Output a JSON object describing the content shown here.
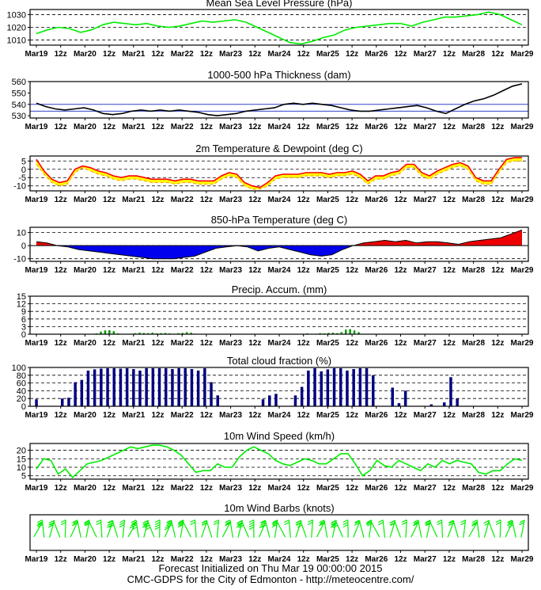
{
  "x_labels": [
    "Mar19",
    "12z",
    "Mar20",
    "12z",
    "Mar21",
    "12z",
    "Mar22",
    "12z",
    "Mar23",
    "12z",
    "Mar24",
    "12z",
    "Mar25",
    "12z",
    "Mar26",
    "12z",
    "Mar27",
    "12z",
    "Mar28",
    "12z",
    "Mar29"
  ],
  "footer": {
    "line1": "Forecast Initialized on Thu Mar 19 00:00:00 2015",
    "line2": "CMC-GDPS for the City of Edmonton - http://meteocentre.com/"
  },
  "colors": {
    "pressure": "#00ee00",
    "wind": "#00ee00",
    "thickness": "#000000",
    "ref_line": "#3344cc",
    "temp_fill": "#ffff00",
    "temp_line": "#ff0000",
    "dew_line": "#ffaa00",
    "t850_pos": "#ee0000",
    "t850_neg": "#0000ee",
    "precip": "#009900",
    "cloud": "#000080",
    "barb": "#00ee00"
  },
  "chart_data": [
    {
      "id": "pressure",
      "type": "line",
      "title": "Mean Sea Level Pressure (hPa)",
      "ylim": [
        1006,
        1034
      ],
      "yticks": [
        1010,
        1020,
        1030
      ],
      "grid": "dashed",
      "series": [
        {
          "values": [
            1015,
            1018,
            1020,
            1019,
            1016,
            1018,
            1022,
            1024,
            1023,
            1022,
            1023,
            1021,
            1020,
            1021,
            1023,
            1025,
            1024,
            1025,
            1026,
            1024,
            1020,
            1016,
            1012,
            1008,
            1007,
            1009,
            1012,
            1014,
            1018,
            1020,
            1021,
            1022,
            1023,
            1023,
            1021,
            1024,
            1026,
            1028,
            1028,
            1029,
            1030,
            1032,
            1030,
            1026,
            1022
          ]
        }
      ]
    },
    {
      "id": "thickness",
      "type": "line",
      "title": "1000-500 hPa Thickness (dam)",
      "ylim": [
        528,
        560
      ],
      "yticks": [
        530,
        540,
        550,
        560
      ],
      "ref_lines": [
        534,
        540
      ],
      "grid": "none",
      "series": [
        {
          "values": [
            541,
            538,
            536,
            535,
            536,
            537,
            535,
            532,
            531,
            532,
            534,
            535,
            534,
            535,
            534,
            535,
            534,
            533,
            531,
            530,
            531,
            532,
            534,
            535,
            536,
            537,
            540,
            541,
            540,
            541,
            540,
            539,
            537,
            535,
            534,
            534,
            535,
            536,
            537,
            538,
            539,
            537,
            534,
            532,
            536,
            540,
            543,
            545,
            548,
            552,
            556,
            558
          ]
        }
      ]
    },
    {
      "id": "temperature",
      "type": "area",
      "title": "2m Temperature & Dewpoint (deg C)",
      "ylim": [
        -13,
        8
      ],
      "yticks": [
        -10,
        -5,
        0,
        5
      ],
      "grid": "dashed",
      "series": [
        {
          "values": [
            6,
            -1,
            -6,
            -8,
            -7,
            0,
            2,
            1,
            -1,
            -2,
            -4,
            -5,
            -4,
            -4,
            -5,
            -6,
            -6,
            -6,
            -7,
            -6,
            -6,
            -7,
            -7,
            -7,
            -4,
            -2,
            -3,
            -8,
            -10,
            -11,
            -8,
            -4,
            -3,
            -3,
            -3,
            -2,
            -2,
            -2,
            -3,
            -2,
            -2,
            -1,
            -3,
            -7,
            -4,
            -4,
            -2,
            -1,
            3,
            3,
            -2,
            -4,
            -1,
            1,
            3,
            4,
            2,
            -5,
            -7,
            -7,
            0,
            6,
            7,
            7
          ]
        },
        {
          "values": [
            3,
            -3,
            -8,
            -10,
            -9,
            -2,
            1,
            -1,
            -3,
            -4,
            -6,
            -7,
            -6,
            -6,
            -7,
            -8,
            -8,
            -8,
            -9,
            -8,
            -8,
            -9,
            -9,
            -9,
            -6,
            -4,
            -5,
            -10,
            -12,
            -12,
            -10,
            -6,
            -5,
            -5,
            -5,
            -4,
            -4,
            -4,
            -5,
            -4,
            -4,
            -3,
            -5,
            -9,
            -6,
            -6,
            -4,
            -3,
            1,
            1,
            -4,
            -6,
            -3,
            -1,
            1,
            2,
            0,
            -7,
            -9,
            -9,
            -2,
            4,
            5,
            5
          ]
        }
      ]
    },
    {
      "id": "t850",
      "type": "area",
      "title": "850-hPa Temperature (deg C)",
      "ylim": [
        -12,
        14
      ],
      "yticks": [
        -10,
        0,
        10
      ],
      "grid": "dashed",
      "series": [
        {
          "values": [
            3,
            2,
            0,
            -1,
            -3,
            -4,
            -5,
            -6,
            -7,
            -8,
            -9,
            -10,
            -10,
            -10,
            -9,
            -8,
            -5,
            -2,
            -1,
            0,
            -1,
            -4,
            -2,
            -1,
            -3,
            -5,
            -7,
            -8,
            -7,
            -3,
            0,
            2,
            3,
            4,
            3,
            4,
            2,
            3,
            3,
            2,
            1,
            3,
            4,
            5,
            6,
            9,
            12
          ]
        }
      ]
    },
    {
      "id": "precip",
      "type": "bar",
      "title": "Precip. Accum. (mm)",
      "ylim": [
        0,
        15
      ],
      "yticks": [
        0,
        3,
        6,
        9,
        12,
        15
      ],
      "grid": "dashed",
      "values": [
        0,
        0,
        0,
        0,
        0,
        0,
        0,
        0,
        0,
        0,
        0,
        0,
        0,
        0,
        0.3,
        1.0,
        1.5,
        1.6,
        1.2,
        0.3,
        0.1,
        0,
        0.2,
        0.4,
        0.6,
        0.5,
        0.4,
        0.6,
        0.3,
        0.4,
        0.5,
        0.3,
        0.2,
        0.4,
        0.5,
        0.8,
        0.6,
        0.2,
        0.1,
        0,
        0,
        0,
        0,
        0,
        0,
        0,
        0,
        0,
        0,
        0,
        0,
        0,
        0,
        0,
        0,
        0,
        0,
        0,
        0,
        0,
        0,
        0,
        0.2,
        0.3,
        0.1,
        0.2,
        0.4,
        0.3,
        0.5,
        0.6,
        0.4,
        0.8,
        1.8,
        2.0,
        1.5,
        0.8,
        0.1,
        0,
        0,
        0,
        0,
        0,
        0,
        0,
        0,
        0,
        0,
        0,
        0,
        0,
        0,
        0,
        0,
        0,
        0,
        0,
        0,
        0,
        0,
        0,
        0,
        0,
        0,
        0,
        0,
        0,
        0,
        0,
        0,
        0,
        0,
        0,
        0,
        0
      ]
    },
    {
      "id": "cloud",
      "type": "bar",
      "title": "Total cloud fraction (%)",
      "ylim": [
        0,
        100
      ],
      "yticks": [
        0,
        20,
        40,
        60,
        80,
        100
      ],
      "grid": "dashed",
      "values": [
        18,
        0,
        0,
        0,
        20,
        22,
        62,
        68,
        92,
        95,
        97,
        98,
        98,
        97,
        98,
        96,
        92,
        98,
        98,
        98,
        98,
        96,
        98,
        98,
        96,
        92,
        98,
        62,
        28,
        0,
        0,
        0,
        0,
        0,
        0,
        18,
        28,
        32,
        0,
        0,
        28,
        50,
        92,
        98,
        90,
        95,
        98,
        98,
        92,
        96,
        98,
        98,
        80,
        0,
        0,
        48,
        8,
        40,
        0,
        0,
        0,
        5,
        0,
        10,
        75,
        20,
        0,
        0,
        0,
        0,
        0,
        0,
        0,
        0,
        0,
        0
      ]
    },
    {
      "id": "wind",
      "type": "line",
      "title": "10m Wind Speed (km/h)",
      "ylim": [
        3,
        24
      ],
      "yticks": [
        5,
        10,
        15,
        20
      ],
      "grid": "dashed",
      "series": [
        {
          "values": [
            9,
            15,
            14,
            6,
            9,
            4,
            8,
            12,
            13,
            14,
            16,
            18,
            20,
            22,
            21,
            22,
            23,
            23,
            22,
            20,
            17,
            12,
            7,
            8,
            8,
            12,
            10,
            10,
            16,
            20,
            22,
            20,
            18,
            14,
            12,
            11,
            13,
            15,
            14,
            12,
            12,
            15,
            18,
            18,
            12,
            5,
            8,
            14,
            11,
            10,
            14,
            12,
            10,
            8,
            12,
            10,
            14,
            12,
            14,
            13,
            12,
            7,
            6,
            8,
            8,
            12,
            15,
            14
          ]
        }
      ]
    },
    {
      "id": "barbs",
      "type": "scatter",
      "title": "10m Wind Barbs  (knots)",
      "values": [
        12,
        15,
        13,
        10,
        9,
        8,
        9,
        11,
        12,
        10,
        14,
        15,
        16,
        17,
        18,
        17,
        18,
        19,
        18,
        17,
        16,
        12,
        10,
        9,
        8,
        9,
        11,
        10,
        14,
        16,
        18,
        17,
        15,
        13,
        11,
        11,
        12,
        13,
        12,
        11,
        11,
        13,
        15,
        15,
        11,
        7,
        9,
        12,
        10,
        9,
        12,
        11,
        10,
        9,
        11,
        10,
        12,
        11,
        12,
        11,
        10,
        8,
        7,
        8,
        9,
        11,
        13,
        12
      ]
    }
  ]
}
